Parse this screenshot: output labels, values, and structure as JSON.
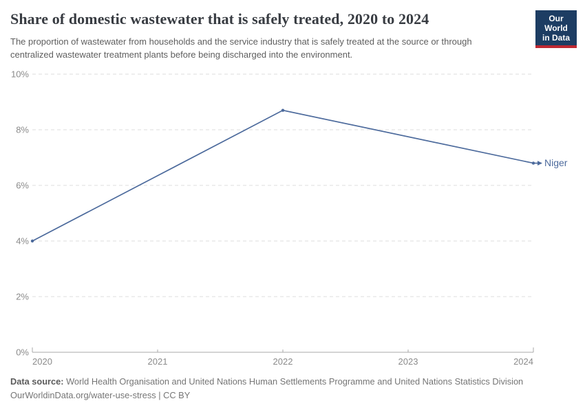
{
  "header": {
    "title": "Share of domestic wastewater that is safely treated, 2020 to 2024",
    "subtitle": "The proportion of wastewater from households and the service industry that is safely treated at the source or through centralized wastewater treatment plants before being discharged into the environment.",
    "logo_line1": "Our World",
    "logo_line2": "in Data"
  },
  "chart_data": {
    "type": "line",
    "title": "Share of domestic wastewater that is safely treated, 2020 to 2024",
    "xlabel": "",
    "ylabel": "",
    "xlim": [
      2020,
      2024
    ],
    "ylim": [
      0,
      10
    ],
    "grid": "horizontal-dashed",
    "legend_position": "end-of-line-label",
    "x_ticks": [
      2020,
      2021,
      2022,
      2023,
      2024
    ],
    "y_ticks": {
      "values": [
        0,
        2,
        4,
        6,
        8,
        10
      ],
      "labels": [
        "0%",
        "2%",
        "4%",
        "6%",
        "8%",
        "10%"
      ]
    },
    "series": [
      {
        "name": "Niger",
        "x": [
          2020,
          2022,
          2024
        ],
        "values": [
          4.0,
          8.7,
          6.8
        ],
        "color": "#4c6a9c"
      }
    ]
  },
  "footer": {
    "datasource_label": "Data source:",
    "datasource_text": " World Health Organisation and United Nations Human Settlements Programme and United Nations Statistics Division",
    "url": "OurWorldinData.org/water-use-stress",
    "separator": " | ",
    "license": "CC BY"
  },
  "colors": {
    "accent_line": "#4c6a9c",
    "logo_navy": "#1d3d63",
    "logo_red": "#be2832",
    "grid": "#dcdcdc",
    "axis": "#a8a8a8",
    "axis_text": "#8b8b8b",
    "title_text": "#383c42",
    "subtitle_text": "#5e5e5e"
  }
}
